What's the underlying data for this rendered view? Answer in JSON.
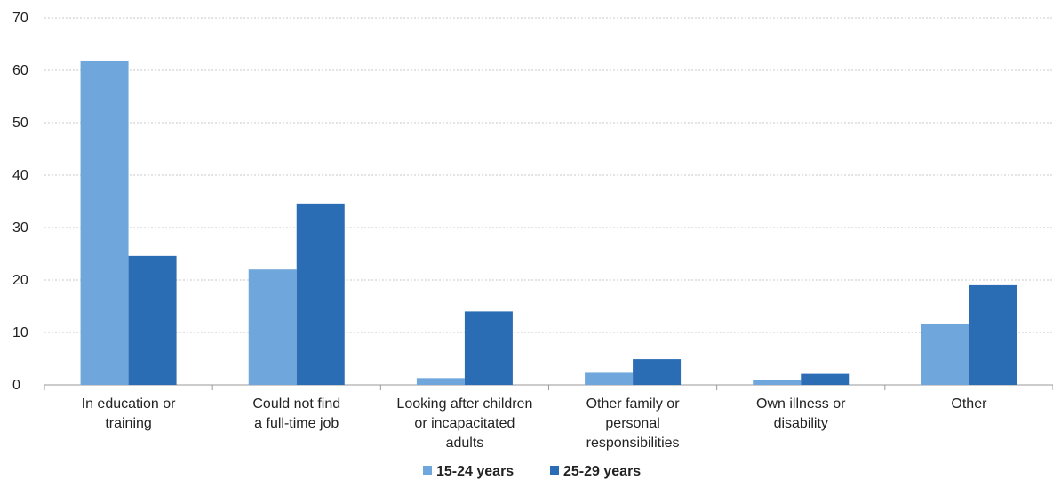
{
  "chart_data": {
    "type": "bar",
    "title": "",
    "xlabel": "",
    "ylabel": "",
    "ylim": [
      0,
      70
    ],
    "yticks": [
      0,
      10,
      20,
      30,
      40,
      50,
      60,
      70
    ],
    "grid": true,
    "legend_position": "bottom-center",
    "categories": [
      [
        "In education or",
        "training"
      ],
      [
        "Could not find",
        "a full-time job"
      ],
      [
        "Looking after children",
        "or incapacitated",
        "adults"
      ],
      [
        "Other family or",
        "personal",
        "responsibilities"
      ],
      [
        "Own illness or",
        "disability"
      ],
      [
        "Other"
      ]
    ],
    "series": [
      {
        "name": "15-24 years",
        "color": "#6fa7dc",
        "values": [
          61.7,
          22.0,
          1.3,
          2.3,
          0.9,
          11.7
        ]
      },
      {
        "name": "25-29 years",
        "color": "#2a6db5",
        "values": [
          24.6,
          34.6,
          14.0,
          4.9,
          2.1,
          19.0
        ]
      }
    ]
  }
}
